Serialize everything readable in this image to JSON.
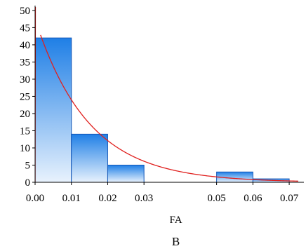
{
  "chart_data": {
    "type": "bar",
    "subtype": "histogram-with-fitted-curve",
    "xlabel": "FA",
    "ylabel": "",
    "panel_label": "B",
    "bins": [
      {
        "from": 0.0,
        "to": 0.01,
        "count": 42
      },
      {
        "from": 0.01,
        "to": 0.02,
        "count": 14
      },
      {
        "from": 0.02,
        "to": 0.03,
        "count": 5
      },
      {
        "from": 0.03,
        "to": 0.04,
        "count": 0
      },
      {
        "from": 0.04,
        "to": 0.05,
        "count": 0
      },
      {
        "from": 0.05,
        "to": 0.06,
        "count": 3
      },
      {
        "from": 0.06,
        "to": 0.07,
        "count": 1
      }
    ],
    "x_ticks": [
      "0.00",
      "0.01",
      "0.02",
      "0.03",
      "0.05",
      "0.06",
      "0.07"
    ],
    "x_tick_values": [
      0.0,
      0.01,
      0.02,
      0.03,
      0.05,
      0.06,
      0.07
    ],
    "y_ticks": [
      "0",
      "5",
      "10",
      "15",
      "20",
      "25",
      "30",
      "35",
      "40",
      "45",
      "50"
    ],
    "xlim": [
      0.0,
      0.0725
    ],
    "ylim": [
      0,
      51
    ],
    "fitted_curve": {
      "type": "exponential",
      "points": [
        {
          "x": 0.0,
          "y": 51
        },
        {
          "x": 0.01,
          "y": 24
        },
        {
          "x": 0.02,
          "y": 11
        },
        {
          "x": 0.03,
          "y": 5.5
        },
        {
          "x": 0.05,
          "y": 2
        },
        {
          "x": 0.07,
          "y": 0.4
        }
      ]
    },
    "colors": {
      "bar_top": "#1f7fe6",
      "bar_bottom": "#e8f2fd",
      "bar_stroke": "#1457b8",
      "curve": "#e0201e",
      "axis": "#000000"
    },
    "grid": false
  }
}
